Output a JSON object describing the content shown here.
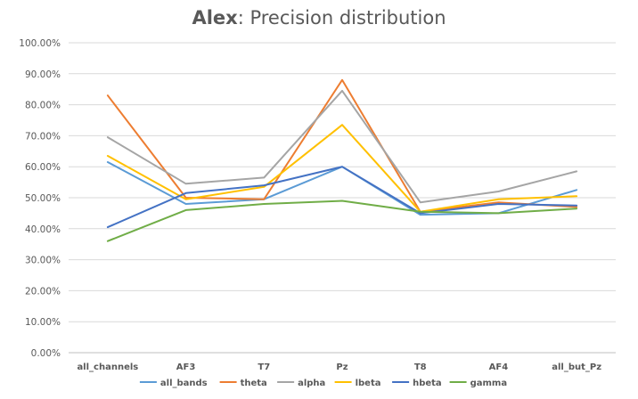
{
  "chart_data": {
    "type": "line",
    "title_bold": "Alex",
    "title_rest": ": Precision distribution",
    "categories": [
      "all_channels",
      "AF3",
      "T7",
      "Pz",
      "T8",
      "AF4",
      "all_but_Pz"
    ],
    "ylim": [
      0,
      100
    ],
    "yticks": [
      0,
      10,
      20,
      30,
      40,
      50,
      60,
      70,
      80,
      90,
      100
    ],
    "ytick_labels": [
      "0.00%",
      "10.00%",
      "20.00%",
      "30.00%",
      "40.00%",
      "50.00%",
      "60.00%",
      "70.00%",
      "80.00%",
      "90.00%",
      "100.00%"
    ],
    "grid": true,
    "legend_position": "bottom",
    "series": [
      {
        "name": "all_bands",
        "color": "#5B9BD5",
        "values": [
          61.5,
          48.0,
          49.5,
          60.0,
          44.5,
          45.0,
          52.5
        ]
      },
      {
        "name": "theta",
        "color": "#ED7D31",
        "values": [
          83.0,
          50.0,
          49.5,
          88.0,
          45.5,
          48.5,
          47.0
        ]
      },
      {
        "name": "alpha",
        "color": "#A5A5A5",
        "values": [
          69.5,
          54.5,
          56.5,
          84.5,
          48.5,
          52.0,
          58.5
        ]
      },
      {
        "name": "lbeta",
        "color": "#FFC000",
        "values": [
          63.5,
          49.5,
          53.5,
          73.5,
          45.5,
          49.5,
          50.5
        ]
      },
      {
        "name": "hbeta",
        "color": "#4472C4",
        "values": [
          40.5,
          51.5,
          54.0,
          60.0,
          45.0,
          48.0,
          47.5
        ]
      },
      {
        "name": "gamma",
        "color": "#70AD47",
        "values": [
          36.0,
          46.0,
          48.0,
          49.0,
          45.5,
          45.0,
          46.5
        ]
      }
    ]
  }
}
